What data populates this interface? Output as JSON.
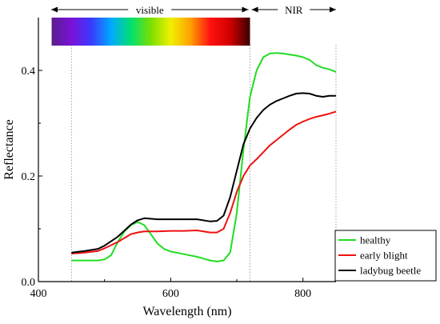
{
  "chart_data": {
    "type": "line",
    "title": "",
    "xlabel": "Wavelength (nm)",
    "ylabel": "Reflectance",
    "xlim": [
      400,
      850
    ],
    "ylim": [
      0,
      0.5
    ],
    "x_ticks": [
      400,
      600,
      800
    ],
    "x_tick_labels": [
      "400",
      "600",
      "800"
    ],
    "y_ticks": [
      0.0,
      0.2,
      0.4
    ],
    "y_tick_labels": [
      "0.0",
      "0.2",
      "0.4"
    ],
    "grid": false,
    "legend_position": "bottom-right",
    "annotations": {
      "visible_label": "visible",
      "nir_label": "NIR",
      "visible_range": [
        400,
        720
      ],
      "nir_range": [
        720,
        850
      ],
      "spectrum_bar_range": [
        420,
        720
      ],
      "guide_lines": [
        450,
        720,
        850
      ]
    },
    "series": [
      {
        "name": "healthy",
        "color": "#22dd22",
        "x": [
          450,
          470,
          490,
          500,
          510,
          520,
          530,
          540,
          550,
          560,
          570,
          580,
          590,
          600,
          620,
          640,
          660,
          670,
          680,
          690,
          700,
          710,
          720,
          730,
          740,
          750,
          760,
          770,
          780,
          790,
          800,
          810,
          820,
          830,
          840,
          850
        ],
        "y": [
          0.04,
          0.04,
          0.04,
          0.042,
          0.05,
          0.075,
          0.095,
          0.107,
          0.113,
          0.107,
          0.09,
          0.072,
          0.062,
          0.057,
          0.052,
          0.047,
          0.04,
          0.038,
          0.04,
          0.055,
          0.13,
          0.25,
          0.35,
          0.4,
          0.425,
          0.432,
          0.433,
          0.432,
          0.43,
          0.428,
          0.425,
          0.42,
          0.41,
          0.405,
          0.402,
          0.397
        ]
      },
      {
        "name": "early blight",
        "color": "#ee1111",
        "x": [
          450,
          470,
          490,
          500,
          520,
          540,
          550,
          560,
          580,
          600,
          620,
          640,
          660,
          670,
          680,
          690,
          700,
          710,
          720,
          730,
          740,
          750,
          760,
          770,
          780,
          790,
          800,
          810,
          820,
          830,
          840,
          850
        ],
        "y": [
          0.053,
          0.055,
          0.058,
          0.063,
          0.075,
          0.09,
          0.093,
          0.095,
          0.095,
          0.096,
          0.096,
          0.097,
          0.093,
          0.093,
          0.1,
          0.13,
          0.17,
          0.2,
          0.22,
          0.232,
          0.245,
          0.258,
          0.268,
          0.278,
          0.288,
          0.297,
          0.303,
          0.308,
          0.312,
          0.315,
          0.318,
          0.322
        ]
      },
      {
        "name": "ladybug beetle",
        "color": "#000000",
        "x": [
          450,
          470,
          490,
          500,
          520,
          540,
          550,
          560,
          580,
          600,
          620,
          640,
          660,
          670,
          680,
          690,
          700,
          710,
          720,
          730,
          740,
          750,
          760,
          770,
          780,
          790,
          800,
          810,
          820,
          830,
          840,
          850
        ],
        "y": [
          0.055,
          0.058,
          0.062,
          0.068,
          0.085,
          0.108,
          0.116,
          0.12,
          0.118,
          0.118,
          0.118,
          0.118,
          0.114,
          0.115,
          0.125,
          0.16,
          0.21,
          0.26,
          0.29,
          0.31,
          0.325,
          0.335,
          0.342,
          0.347,
          0.352,
          0.356,
          0.357,
          0.356,
          0.352,
          0.35,
          0.352,
          0.352
        ]
      }
    ]
  },
  "colors": {
    "axis": "#000000",
    "guide": "#999999",
    "spectrum": [
      "#5a1e8c",
      "#7a12d8",
      "#3a3aff",
      "#00aaff",
      "#00e070",
      "#7ae000",
      "#f0f000",
      "#ffa000",
      "#ff1010",
      "#d00000",
      "#3a0000"
    ]
  }
}
